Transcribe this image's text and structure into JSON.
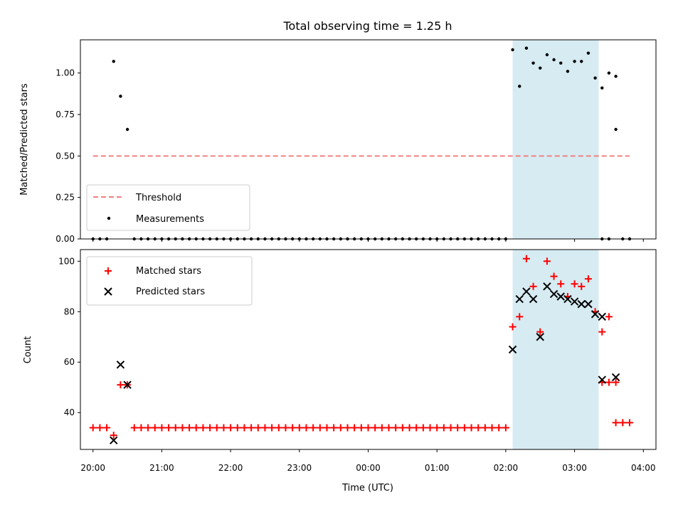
{
  "chart_data": [
    {
      "type": "scatter",
      "title": "Total observing time = 1.25 h",
      "ylabel": "Matched/Predicted stars",
      "xlim": [
        "19:49",
        "04:11"
      ],
      "ylim": [
        0,
        1.2
      ],
      "yticks": [
        "0.00",
        "0.25",
        "0.50",
        "0.75",
        "1.00"
      ],
      "shaded_span": [
        "02:06",
        "03:21"
      ],
      "legend_position": "lower-left",
      "threshold": {
        "name": "Threshold",
        "value": 0.5,
        "x_range": [
          "20:00",
          "03:48"
        ],
        "color": "#f08080"
      },
      "series": [
        {
          "name": "Measurements",
          "points": [
            [
              "20:00",
              0
            ],
            [
              "20:06",
              0
            ],
            [
              "20:12",
              0
            ],
            [
              "20:18",
              1.07
            ],
            [
              "20:24",
              0.86
            ],
            [
              "20:30",
              0.66
            ],
            [
              "20:36",
              0
            ],
            [
              "20:42",
              0
            ],
            [
              "20:48",
              0
            ],
            [
              "20:54",
              0
            ],
            [
              "21:00",
              0
            ],
            [
              "21:06",
              0
            ],
            [
              "21:12",
              0
            ],
            [
              "21:18",
              0
            ],
            [
              "21:24",
              0
            ],
            [
              "21:30",
              0
            ],
            [
              "21:36",
              0
            ],
            [
              "21:42",
              0
            ],
            [
              "21:48",
              0
            ],
            [
              "21:54",
              0
            ],
            [
              "22:00",
              0
            ],
            [
              "22:06",
              0
            ],
            [
              "22:12",
              0
            ],
            [
              "22:18",
              0
            ],
            [
              "22:24",
              0
            ],
            [
              "22:30",
              0
            ],
            [
              "22:36",
              0
            ],
            [
              "22:42",
              0
            ],
            [
              "22:48",
              0
            ],
            [
              "22:54",
              0
            ],
            [
              "23:00",
              0
            ],
            [
              "23:06",
              0
            ],
            [
              "23:12",
              0
            ],
            [
              "23:18",
              0
            ],
            [
              "23:24",
              0
            ],
            [
              "23:30",
              0
            ],
            [
              "23:36",
              0
            ],
            [
              "23:42",
              0
            ],
            [
              "23:48",
              0
            ],
            [
              "23:54",
              0
            ],
            [
              "00:00",
              0
            ],
            [
              "00:06",
              0
            ],
            [
              "00:12",
              0
            ],
            [
              "00:18",
              0
            ],
            [
              "00:24",
              0
            ],
            [
              "00:30",
              0
            ],
            [
              "00:36",
              0
            ],
            [
              "00:42",
              0
            ],
            [
              "00:48",
              0
            ],
            [
              "00:54",
              0
            ],
            [
              "01:00",
              0
            ],
            [
              "01:06",
              0
            ],
            [
              "01:12",
              0
            ],
            [
              "01:18",
              0
            ],
            [
              "01:24",
              0
            ],
            [
              "01:30",
              0
            ],
            [
              "01:36",
              0
            ],
            [
              "01:42",
              0
            ],
            [
              "01:48",
              0
            ],
            [
              "01:54",
              0
            ],
            [
              "02:00",
              0
            ],
            [
              "02:06",
              1.14
            ],
            [
              "02:12",
              0.92
            ],
            [
              "02:18",
              1.15
            ],
            [
              "02:24",
              1.06
            ],
            [
              "02:30",
              1.03
            ],
            [
              "02:36",
              1.11
            ],
            [
              "02:42",
              1.08
            ],
            [
              "02:48",
              1.06
            ],
            [
              "02:54",
              1.01
            ],
            [
              "03:00",
              1.07
            ],
            [
              "03:06",
              1.07
            ],
            [
              "03:12",
              1.12
            ],
            [
              "03:18",
              0.97
            ],
            [
              "03:24",
              0.91
            ],
            [
              "03:30",
              1.0
            ],
            [
              "03:36",
              0.98
            ],
            [
              "03:24",
              0
            ],
            [
              "03:30",
              0
            ],
            [
              "03:36",
              0.66
            ],
            [
              "03:42",
              0
            ],
            [
              "03:48",
              0
            ]
          ]
        }
      ]
    },
    {
      "type": "scatter",
      "xlabel": "Time (UTC)",
      "ylabel": "Count",
      "xlim": [
        "19:49",
        "04:11"
      ],
      "ylim": [
        25.4,
        104.6
      ],
      "yticks": [
        "40",
        "60",
        "80",
        "100"
      ],
      "xticks": [
        "20:00",
        "21:00",
        "22:00",
        "23:00",
        "00:00",
        "01:00",
        "02:00",
        "03:00",
        "04:00"
      ],
      "shaded_span": [
        "02:06",
        "03:21"
      ],
      "legend_position": "upper-left",
      "series": [
        {
          "name": "Matched stars",
          "color": "#ff0000",
          "marker": "plus",
          "points": [
            [
              "20:00",
              34
            ],
            [
              "20:06",
              34
            ],
            [
              "20:12",
              34
            ],
            [
              "20:18",
              31
            ],
            [
              "20:24",
              51
            ],
            [
              "20:30",
              51
            ],
            [
              "20:36",
              34
            ],
            [
              "20:42",
              34
            ],
            [
              "20:48",
              34
            ],
            [
              "20:54",
              34
            ],
            [
              "21:00",
              34
            ],
            [
              "21:06",
              34
            ],
            [
              "21:12",
              34
            ],
            [
              "21:18",
              34
            ],
            [
              "21:24",
              34
            ],
            [
              "21:30",
              34
            ],
            [
              "21:36",
              34
            ],
            [
              "21:42",
              34
            ],
            [
              "21:48",
              34
            ],
            [
              "21:54",
              34
            ],
            [
              "22:00",
              34
            ],
            [
              "22:06",
              34
            ],
            [
              "22:12",
              34
            ],
            [
              "22:18",
              34
            ],
            [
              "22:24",
              34
            ],
            [
              "22:30",
              34
            ],
            [
              "22:36",
              34
            ],
            [
              "22:42",
              34
            ],
            [
              "22:48",
              34
            ],
            [
              "22:54",
              34
            ],
            [
              "23:00",
              34
            ],
            [
              "23:06",
              34
            ],
            [
              "23:12",
              34
            ],
            [
              "23:18",
              34
            ],
            [
              "23:24",
              34
            ],
            [
              "23:30",
              34
            ],
            [
              "23:36",
              34
            ],
            [
              "23:42",
              34
            ],
            [
              "23:48",
              34
            ],
            [
              "23:54",
              34
            ],
            [
              "00:00",
              34
            ],
            [
              "00:06",
              34
            ],
            [
              "00:12",
              34
            ],
            [
              "00:18",
              34
            ],
            [
              "00:24",
              34
            ],
            [
              "00:30",
              34
            ],
            [
              "00:36",
              34
            ],
            [
              "00:42",
              34
            ],
            [
              "00:48",
              34
            ],
            [
              "00:54",
              34
            ],
            [
              "01:00",
              34
            ],
            [
              "01:06",
              34
            ],
            [
              "01:12",
              34
            ],
            [
              "01:18",
              34
            ],
            [
              "01:24",
              34
            ],
            [
              "01:30",
              34
            ],
            [
              "01:36",
              34
            ],
            [
              "01:42",
              34
            ],
            [
              "01:48",
              34
            ],
            [
              "01:54",
              34
            ],
            [
              "02:00",
              34
            ],
            [
              "02:06",
              74
            ],
            [
              "02:12",
              78
            ],
            [
              "02:18",
              101
            ],
            [
              "02:24",
              90
            ],
            [
              "02:30",
              72
            ],
            [
              "02:36",
              100
            ],
            [
              "02:42",
              94
            ],
            [
              "02:48",
              91
            ],
            [
              "02:54",
              86
            ],
            [
              "03:00",
              91
            ],
            [
              "03:06",
              90
            ],
            [
              "03:12",
              93
            ],
            [
              "03:18",
              80
            ],
            [
              "03:24",
              72
            ],
            [
              "03:30",
              78
            ],
            [
              "03:24",
              52
            ],
            [
              "03:30",
              52
            ],
            [
              "03:36",
              52
            ],
            [
              "03:36",
              36
            ],
            [
              "03:42",
              36
            ],
            [
              "03:48",
              36
            ]
          ]
        },
        {
          "name": "Predicted stars",
          "color": "#000000",
          "marker": "x",
          "points": [
            [
              "20:18",
              29
            ],
            [
              "20:24",
              59
            ],
            [
              "20:30",
              51
            ],
            [
              "02:06",
              65
            ],
            [
              "02:12",
              85
            ],
            [
              "02:18",
              88
            ],
            [
              "02:24",
              85
            ],
            [
              "02:30",
              70
            ],
            [
              "02:36",
              90
            ],
            [
              "02:42",
              87
            ],
            [
              "02:48",
              86
            ],
            [
              "02:54",
              85
            ],
            [
              "03:00",
              84
            ],
            [
              "03:06",
              83
            ],
            [
              "03:12",
              83
            ],
            [
              "03:18",
              79
            ],
            [
              "03:24",
              78
            ],
            [
              "03:24",
              53
            ],
            [
              "03:36",
              54
            ]
          ]
        }
      ]
    }
  ]
}
